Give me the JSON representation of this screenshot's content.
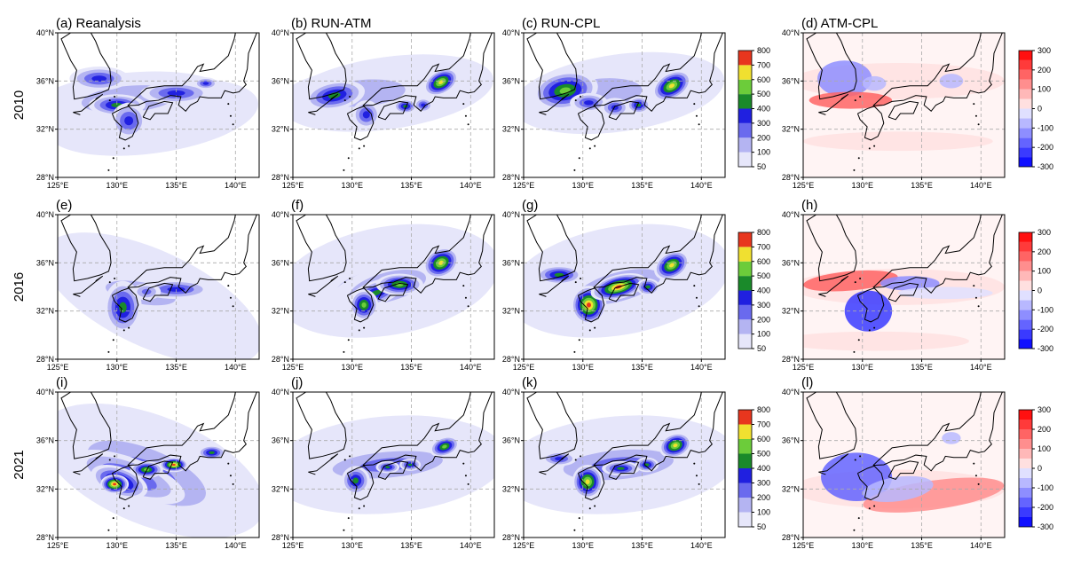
{
  "panels": [
    "(a) Reanalysis",
    "(b) RUN-ATM",
    "(c) RUN-CPL",
    "(d) ATM-CPL",
    "(e)",
    "(f)",
    "(g)",
    "(h)",
    "(i)",
    "(j)",
    "(k)",
    "(l)"
  ],
  "row_labels": [
    "2010",
    "2016",
    "2021"
  ],
  "lat_range": [
    28,
    40
  ],
  "lon_range": [
    125,
    142
  ],
  "lat_ticks": [
    {
      "value": 28,
      "label": "28°N"
    },
    {
      "value": 32,
      "label": "32°N"
    },
    {
      "value": 36,
      "label": "36°N"
    },
    {
      "value": 40,
      "label": "40°N"
    }
  ],
  "lon_ticks": [
    {
      "value": 125,
      "label": "125°E"
    },
    {
      "value": 130,
      "label": "130°E"
    },
    {
      "value": 135,
      "label": "135°E"
    },
    {
      "value": 140,
      "label": "140°E"
    }
  ],
  "precip_colorbar": {
    "ticks": [
      50,
      100,
      200,
      300,
      400,
      500,
      600,
      700,
      800
    ],
    "colors": [
      "#e6e6fa",
      "#b4b4f2",
      "#6a6aee",
      "#2020e0",
      "#1a8a2a",
      "#6ccc3a",
      "#f0e030",
      "#e8361e"
    ]
  },
  "diff_colorbar": {
    "ticks": [
      -300,
      -200,
      -100,
      0,
      100,
      200,
      300
    ],
    "colors": [
      "#1010ff",
      "#3a3aff",
      "#6464ff",
      "#8e8eff",
      "#b8b8ff",
      "#e0e0ff",
      "#ffe0e0",
      "#ffb8b8",
      "#ff8e8e",
      "#ff6464",
      "#ff3a3a",
      "#ff1010"
    ]
  }
}
